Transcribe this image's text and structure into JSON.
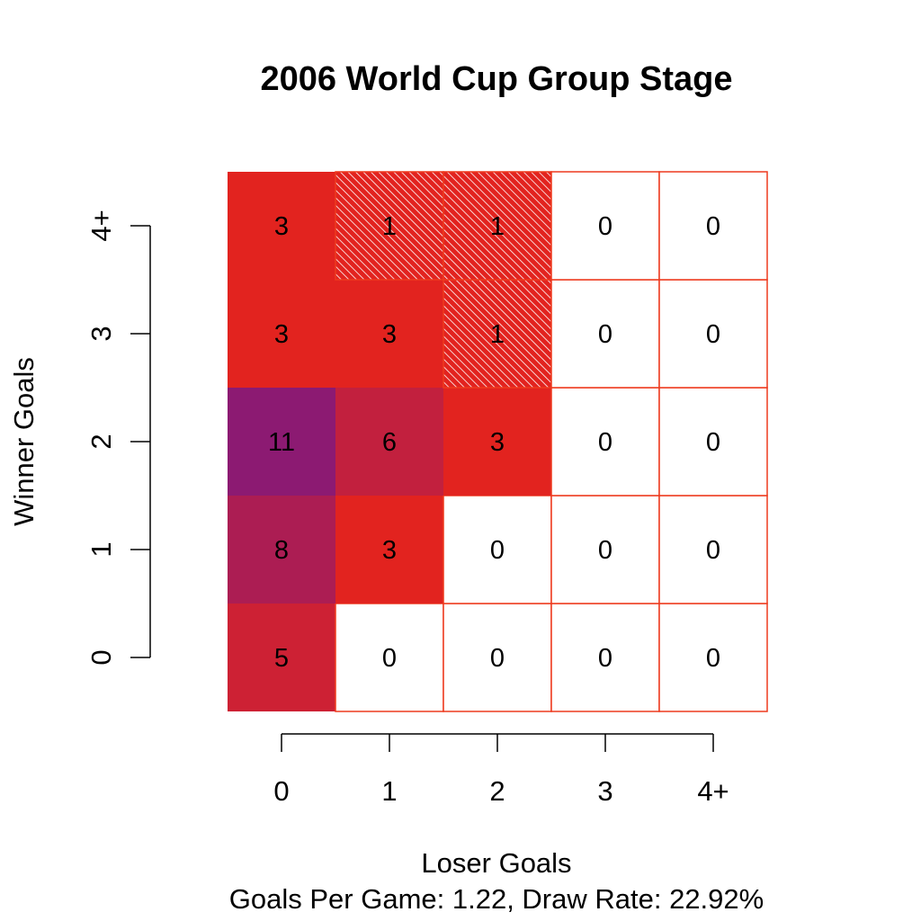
{
  "chart_data": {
    "type": "heatmap",
    "title": "2006 World Cup Group Stage",
    "xlabel": "Loser Goals",
    "ylabel": "Winner Goals",
    "subtitle": "Goals Per Game: 1.22, Draw Rate: 22.92%",
    "x_categories": [
      "0",
      "1",
      "2",
      "3",
      "4+"
    ],
    "y_categories": [
      "0",
      "1",
      "2",
      "3",
      "4+"
    ],
    "cells": [
      [
        5,
        0,
        0,
        0,
        0
      ],
      [
        8,
        3,
        0,
        0,
        0
      ],
      [
        11,
        6,
        3,
        0,
        0
      ],
      [
        3,
        3,
        1,
        0,
        0
      ],
      [
        3,
        1,
        1,
        0,
        0
      ]
    ],
    "colors": {
      "zero": "#ffffff",
      "low": "#e2231f",
      "high": "#8c1a72",
      "grid": "#ee3a1e",
      "hatch": "#ffffff"
    },
    "hatched_values": [
      1
    ]
  }
}
